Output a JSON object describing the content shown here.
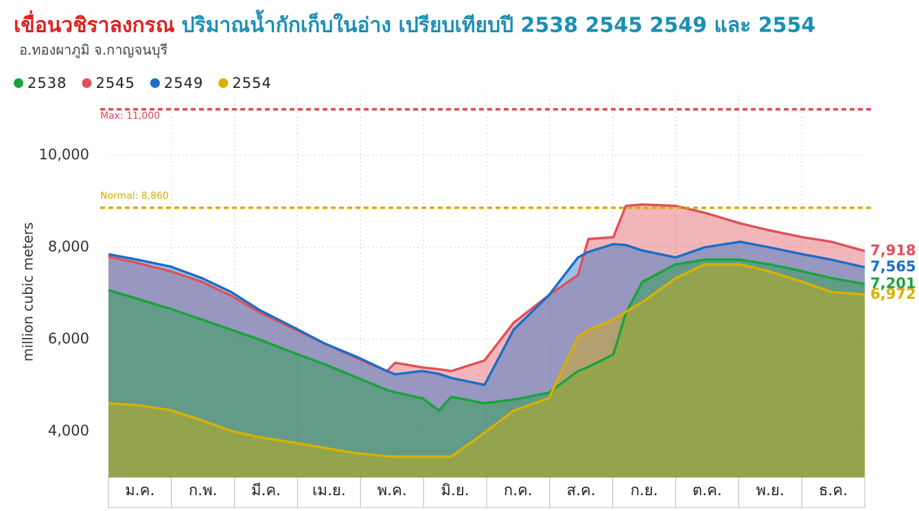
{
  "chart_data": {
    "type": "area",
    "title": "เขื่อนวชิราลงกรณ",
    "subtitle": "ปริมาณน้ำกักเก็บในอ่าง เปรียบเทียบปี 2538 2545 2549 และ 2554",
    "caption": "อ.ทองผาภูมิ จ.กาญจนบุรี",
    "y_label": "million cubic meters",
    "months": [
      "ม.ค.",
      "ก.พ.",
      "มี.ค.",
      "เม.ย.",
      "พ.ค.",
      "มิ.ย.",
      "ก.ค.",
      "ส.ค.",
      "ก.ย.",
      "ต.ค.",
      "พ.ย.",
      "ธ.ค."
    ],
    "x": [
      1,
      15,
      31,
      46,
      60,
      74,
      91,
      105,
      121,
      135,
      139,
      152,
      160,
      166,
      182,
      196,
      213,
      227,
      232,
      244,
      250,
      258,
      274,
      288,
      305,
      319,
      335,
      349,
      365
    ],
    "xlim": [
      1,
      365
    ],
    "ylim": [
      3000,
      11300
    ],
    "yticks": [
      {
        "value": 4000,
        "label": "4,000"
      },
      {
        "value": 6000,
        "label": "6,000"
      },
      {
        "value": 8000,
        "label": "8,000"
      },
      {
        "value": 10000,
        "label": "10,000"
      }
    ],
    "grid": true,
    "reference_lines": [
      {
        "label": "Max: 11,000",
        "value": 11000,
        "color": "#e04452"
      },
      {
        "label": "Normal: 8,860",
        "value": 8860,
        "color": "#d4ac00"
      }
    ],
    "series": [
      {
        "name": "2545",
        "color": "#e0505a",
        "value_labels": [
          "7,918"
        ],
        "label_index": 28,
        "values": [
          7800,
          7660,
          7480,
          7250,
          6950,
          6580,
          6210,
          5910,
          5580,
          5310,
          5490,
          5390,
          5350,
          5310,
          5540,
          6360,
          6960,
          7400,
          8180,
          8220,
          8900,
          8930,
          8900,
          8750,
          8520,
          8370,
          8220,
          8120,
          7918
        ]
      },
      {
        "name": "2549",
        "color": "#1a6ec8",
        "value_labels": [
          "7,565"
        ],
        "label_index": 28,
        "values": [
          7850,
          7730,
          7580,
          7330,
          7030,
          6630,
          6240,
          5910,
          5610,
          5310,
          5240,
          5310,
          5250,
          5160,
          5010,
          6210,
          6960,
          7780,
          7900,
          8070,
          8050,
          7930,
          7780,
          8000,
          8120,
          8000,
          7850,
          7730,
          7565
        ]
      },
      {
        "name": "2538",
        "color": "#1aa33a",
        "value_labels": [
          "7,201"
        ],
        "label_index": 28,
        "values": [
          7070,
          6880,
          6660,
          6430,
          6210,
          5990,
          5690,
          5460,
          5160,
          4900,
          4850,
          4720,
          4450,
          4750,
          4610,
          4690,
          4840,
          5310,
          5400,
          5670,
          6570,
          7250,
          7630,
          7730,
          7730,
          7630,
          7480,
          7330,
          7201
        ]
      },
      {
        "name": "2554",
        "color": "#d8b000",
        "value_labels": [
          "6,972"
        ],
        "label_index": 28,
        "values": [
          4610,
          4570,
          4460,
          4240,
          4010,
          3870,
          3750,
          3640,
          3520,
          3460,
          3450,
          3450,
          3450,
          3450,
          3970,
          4450,
          4720,
          6060,
          6200,
          6430,
          6600,
          6810,
          7330,
          7630,
          7630,
          7480,
          7250,
          7030,
          6972
        ]
      }
    ],
    "legend_order": [
      2,
      0,
      1,
      3
    ]
  }
}
